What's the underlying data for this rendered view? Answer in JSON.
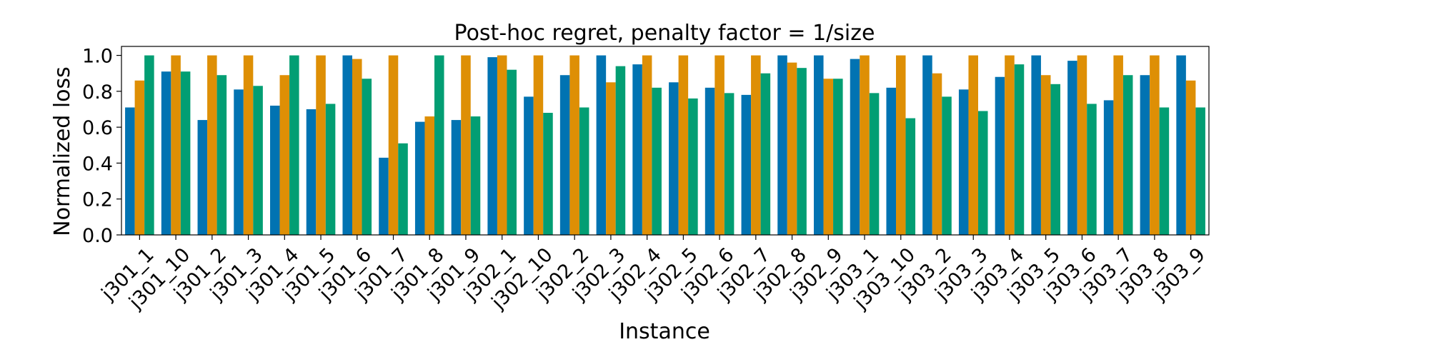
{
  "chart_data": {
    "type": "bar",
    "title": "Post-hoc regret, penalty factor = 1/size",
    "xlabel": "Instance",
    "ylabel": "Normalized loss",
    "ylim": [
      0,
      1.05
    ],
    "yticks": [
      "0.0",
      "0.2",
      "0.4",
      "0.6",
      "0.8",
      "1.0"
    ],
    "grid": false,
    "legend": "none",
    "categories": [
      "j301_1",
      "j301_10",
      "j301_2",
      "j301_3",
      "j301_4",
      "j301_5",
      "j301_6",
      "j301_7",
      "j301_8",
      "j301_9",
      "j302_1",
      "j302_10",
      "j302_2",
      "j302_3",
      "j302_4",
      "j302_5",
      "j302_6",
      "j302_7",
      "j302_8",
      "j302_9",
      "j303_1",
      "j303_10",
      "j303_2",
      "j303_3",
      "j303_4",
      "j303_5",
      "j303_6",
      "j303_7",
      "j303_8",
      "j303_9"
    ],
    "series": [
      {
        "color": "#0173b2",
        "values": [
          0.71,
          0.91,
          0.64,
          0.81,
          0.72,
          0.7,
          1.0,
          0.43,
          0.63,
          0.64,
          0.99,
          0.77,
          0.89,
          1.0,
          0.95,
          0.85,
          0.82,
          0.78,
          1.0,
          1.0,
          0.98,
          0.82,
          1.0,
          0.81,
          0.88,
          1.0,
          0.97,
          0.75,
          0.89,
          1.0
        ]
      },
      {
        "color": "#de8f05",
        "values": [
          0.86,
          1.0,
          1.0,
          1.0,
          0.89,
          1.0,
          0.98,
          1.0,
          0.66,
          1.0,
          1.0,
          1.0,
          1.0,
          0.85,
          1.0,
          1.0,
          1.0,
          1.0,
          0.96,
          0.87,
          1.0,
          1.0,
          0.9,
          1.0,
          1.0,
          0.89,
          1.0,
          1.0,
          1.0,
          0.86
        ]
      },
      {
        "color": "#029e73",
        "values": [
          1.0,
          0.91,
          0.89,
          0.83,
          1.0,
          0.73,
          0.87,
          0.51,
          1.0,
          0.66,
          0.92,
          0.68,
          0.71,
          0.94,
          0.82,
          0.76,
          0.79,
          0.9,
          0.93,
          0.87,
          0.79,
          0.65,
          0.77,
          0.69,
          0.95,
          0.84,
          0.73,
          0.89,
          0.71,
          0.71
        ]
      }
    ]
  }
}
